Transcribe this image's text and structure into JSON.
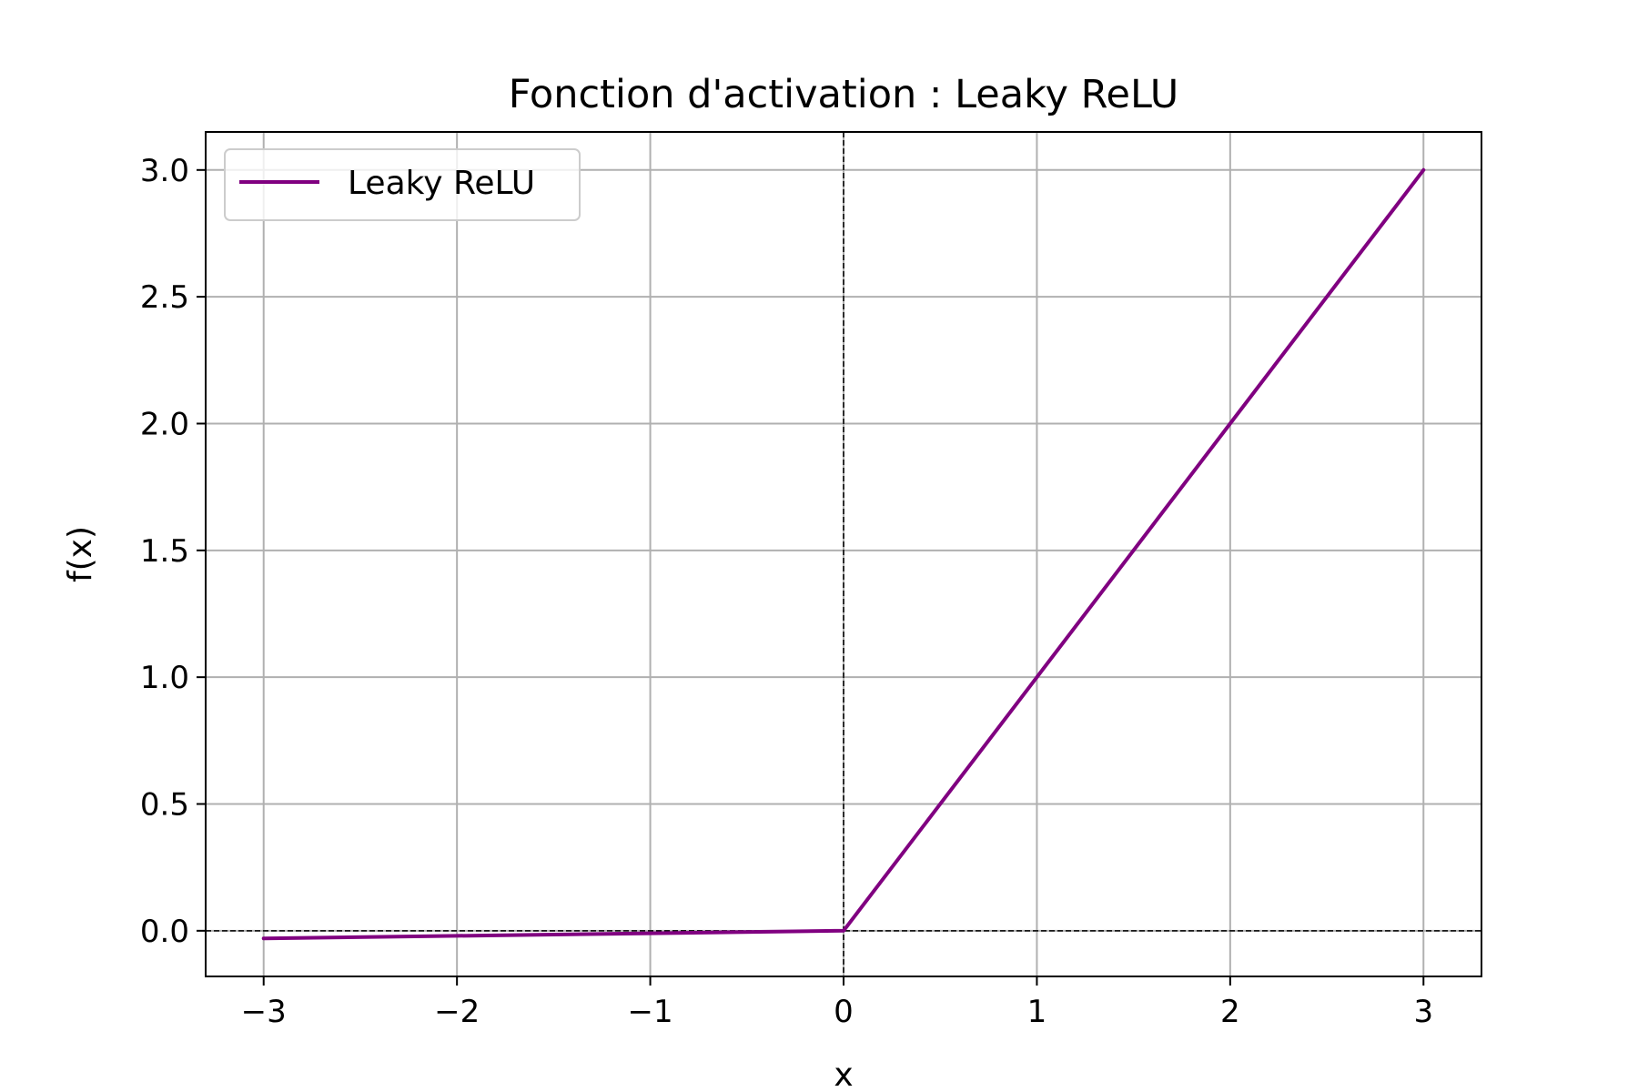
{
  "chart_data": {
    "type": "line",
    "title": "Fonction d'activation : Leaky ReLU",
    "xlabel": "x",
    "ylabel": "f(x)",
    "xlim": [
      -3.3,
      3.3
    ],
    "ylim": [
      -0.18,
      3.15
    ],
    "x_ticks": [
      -3,
      -2,
      -1,
      0,
      1,
      2,
      3
    ],
    "x_tick_labels": [
      "−3",
      "−2",
      "−1",
      "0",
      "1",
      "2",
      "3"
    ],
    "y_ticks": [
      0.0,
      0.5,
      1.0,
      1.5,
      2.0,
      2.5,
      3.0
    ],
    "y_tick_labels": [
      "0.0",
      "0.5",
      "1.0",
      "1.5",
      "2.0",
      "2.5",
      "3.0"
    ],
    "grid": true,
    "legend_position": "upper-left",
    "reference_lines": [
      {
        "orientation": "horizontal",
        "value": 0,
        "style": "dashed",
        "color": "#000000"
      },
      {
        "orientation": "vertical",
        "value": 0,
        "style": "dashed",
        "color": "#000000"
      }
    ],
    "series": [
      {
        "name": "Leaky ReLU",
        "color": "#800080",
        "x": [
          -3,
          -2,
          -1,
          0,
          1,
          2,
          3
        ],
        "y": [
          -0.03,
          -0.02,
          -0.01,
          0,
          1,
          2,
          3
        ]
      }
    ]
  }
}
